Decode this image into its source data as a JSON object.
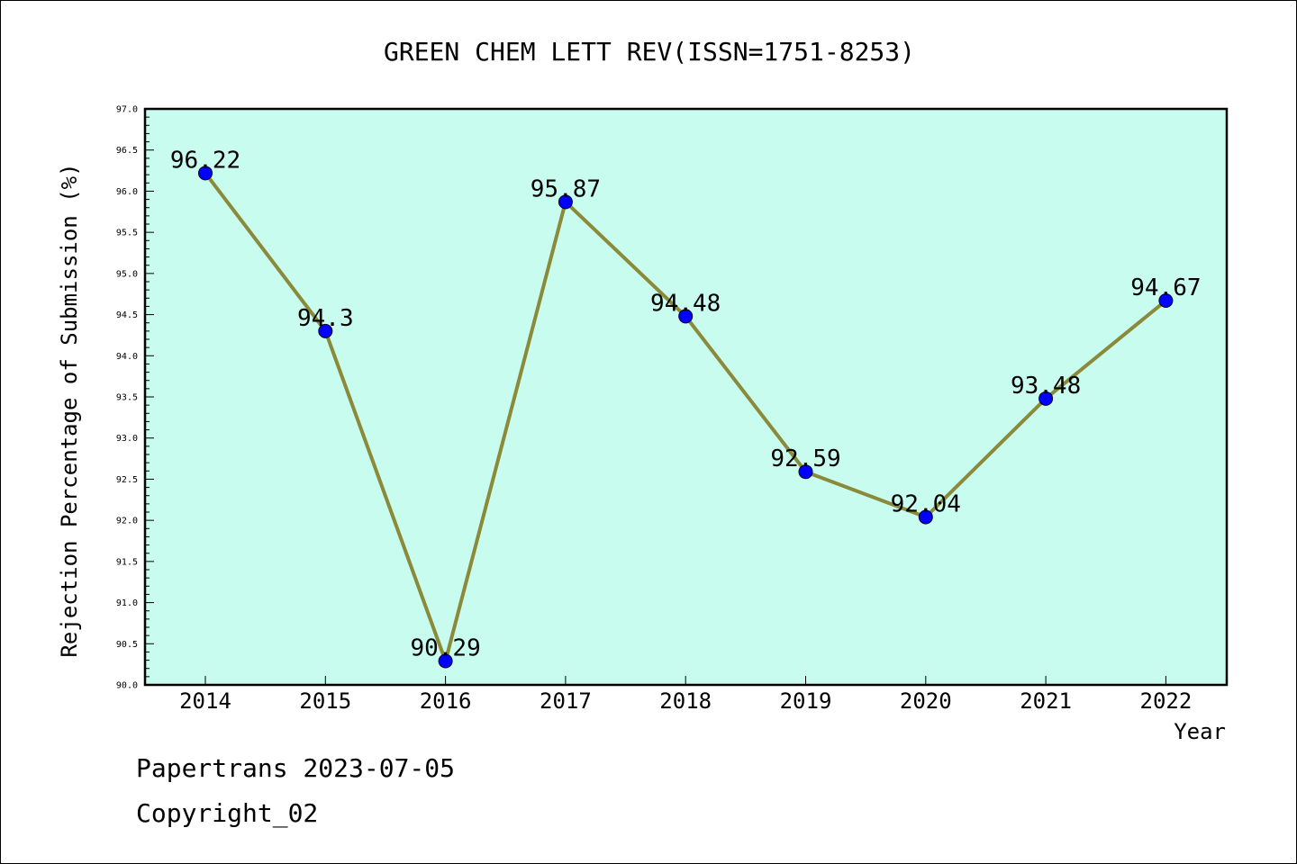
{
  "chart_data": {
    "type": "line",
    "title": "GREEN CHEM LETT REV(ISSN=1751-8253)",
    "xlabel": "Year",
    "ylabel": "Rejection Percentage of Submission (%)",
    "categories": [
      "2014",
      "2015",
      "2016",
      "2017",
      "2018",
      "2019",
      "2020",
      "2021",
      "2022"
    ],
    "values": [
      96.22,
      94.3,
      90.29,
      95.87,
      94.48,
      92.59,
      92.04,
      93.48,
      94.67
    ],
    "data_labels": [
      "96.22",
      "94.3",
      "90.29",
      "95.87",
      "94.48",
      "92.59",
      "92.04",
      "93.48",
      "94.67"
    ],
    "ylim": [
      90.0,
      97.0
    ],
    "yticks": [
      "90.0",
      "90.5",
      "91.0",
      "91.5",
      "92.0",
      "92.5",
      "93.0",
      "93.5",
      "94.0",
      "94.5",
      "95.0",
      "95.5",
      "96.0",
      "96.5",
      "97.0"
    ],
    "grid": false,
    "legend": "none",
    "colors": {
      "plot_background": "#c8fcee",
      "line": "#8b8a3a",
      "marker": "#0000ff",
      "axis": "#000000"
    }
  },
  "footer": {
    "source": "Papertrans 2023-07-05",
    "copyright": "Copyright_02"
  }
}
